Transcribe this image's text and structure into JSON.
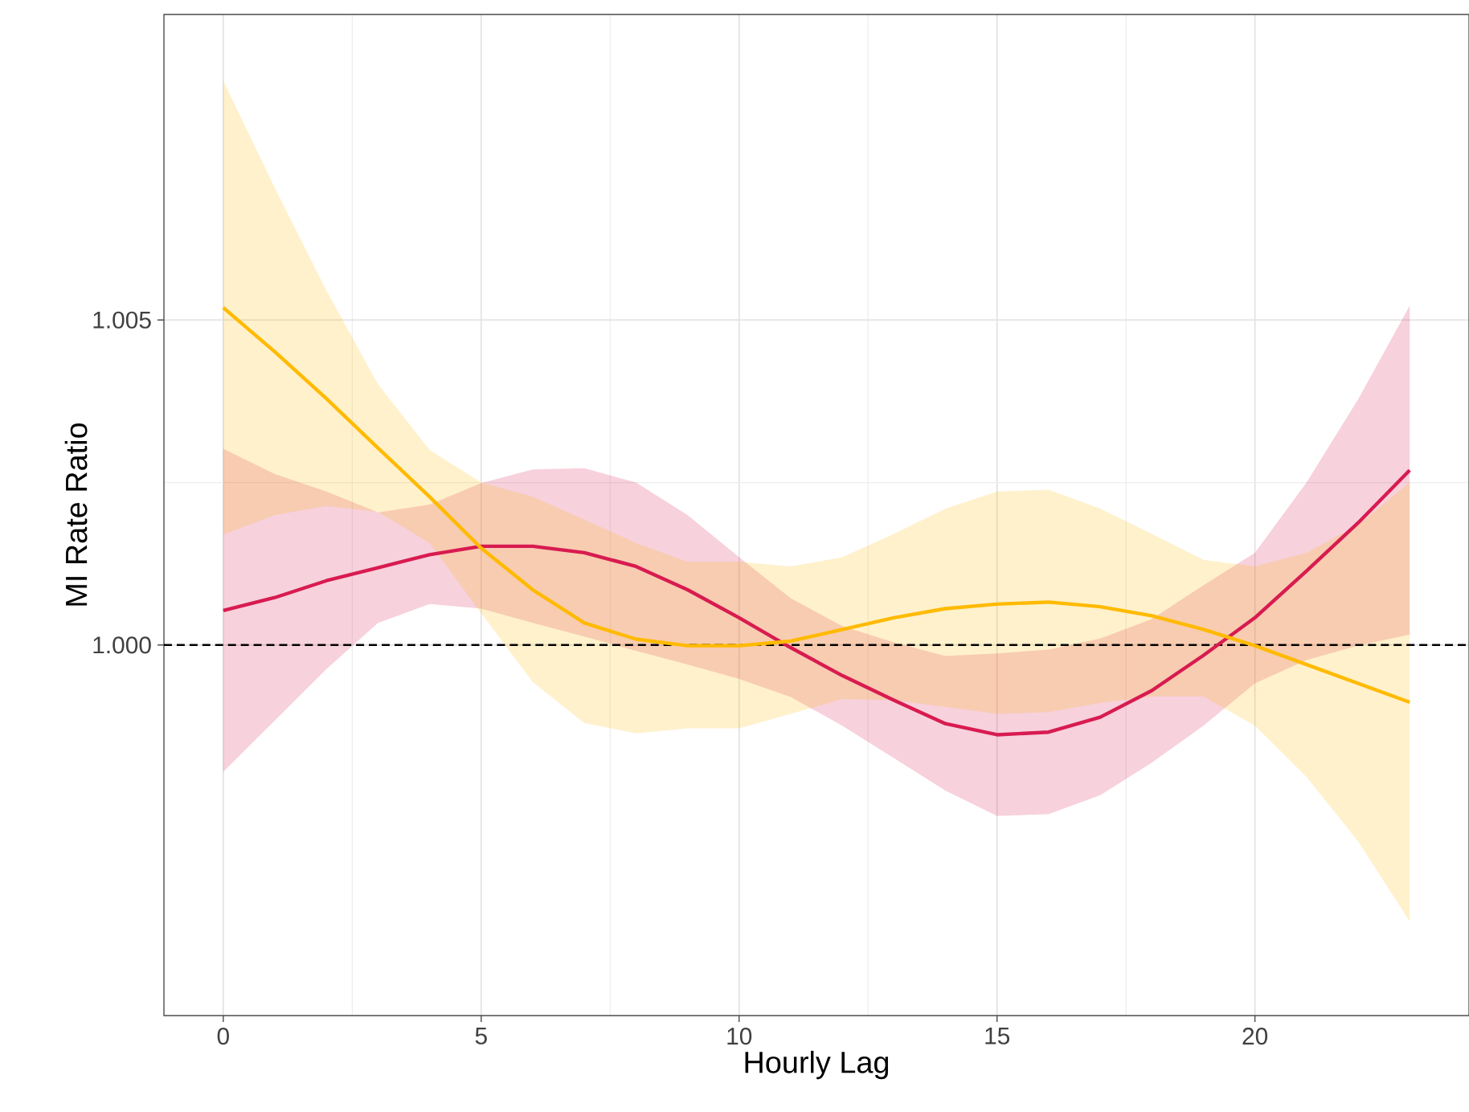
{
  "chart_data": {
    "type": "line",
    "xlabel": "Hourly Lag",
    "ylabel": "MI Rate Ratio",
    "x": [
      0,
      1,
      2,
      3,
      4,
      5,
      6,
      7,
      8,
      9,
      10,
      11,
      12,
      13,
      14,
      15,
      16,
      17,
      18,
      19,
      20,
      21,
      22,
      23
    ],
    "series": [
      {
        "color": "#d81b50",
        "values": [
          1.00053,
          1.00073,
          1.00099,
          1.00119,
          1.00139,
          1.00152,
          1.00152,
          1.00142,
          1.00121,
          1.00085,
          1.00042,
          0.99996,
          0.99953,
          0.99915,
          0.99879,
          0.99862,
          0.99866,
          0.99889,
          0.9993,
          0.99984,
          1.00042,
          1.00114,
          1.00188,
          1.00269
        ],
        "lower": [
          0.99805,
          0.99884,
          0.99963,
          1.00034,
          1.00063,
          1.00056,
          1.00034,
          1.00013,
          0.99991,
          0.9997,
          0.99948,
          0.9992,
          0.99876,
          0.99826,
          0.99776,
          0.99737,
          0.9974,
          0.99769,
          0.99819,
          0.99876,
          0.99941,
          0.99977,
          0.99999,
          1.00016
        ],
        "upper": [
          1.00302,
          1.00263,
          1.00236,
          1.00204,
          1.00216,
          1.00249,
          1.0027,
          1.00272,
          1.0025,
          1.002,
          1.00135,
          1.00072,
          1.00029,
          1.00004,
          0.99983,
          0.99987,
          0.99993,
          1.0001,
          1.0004,
          1.00092,
          1.00142,
          1.0025,
          1.00378,
          1.00522
        ]
      },
      {
        "color": "#ffba00",
        "values": [
          1.00519,
          1.00451,
          1.00379,
          1.00303,
          1.00228,
          1.00149,
          1.00085,
          1.00034,
          1.00009,
          0.99999,
          0.99999,
          1.00006,
          1.00024,
          1.00042,
          1.00056,
          1.00063,
          1.00066,
          1.00059,
          1.00045,
          1.00024,
          0.99999,
          0.9997,
          0.99941,
          0.99912
        ],
        "lower": [
          1.0017,
          1.002,
          1.00214,
          1.00205,
          1.00157,
          1.00049,
          0.99943,
          0.9988,
          0.99864,
          0.99872,
          0.99872,
          0.99894,
          0.99917,
          0.99915,
          0.99905,
          0.99894,
          0.99897,
          0.99911,
          0.99921,
          0.99921,
          0.99876,
          0.99797,
          0.99698,
          0.99575
        ],
        "upper": [
          1.00868,
          1.00703,
          1.00545,
          1.00401,
          1.003,
          1.0025,
          1.00228,
          1.00193,
          1.00157,
          1.00128,
          1.00128,
          1.00121,
          1.00135,
          1.00171,
          1.0021,
          1.00236,
          1.00239,
          1.0021,
          1.00171,
          1.00131,
          1.00121,
          1.00142,
          1.00185,
          1.0025
        ]
      }
    ],
    "xlim": [
      -1.15,
      24.15
    ],
    "ylim": [
      0.9943,
      1.0097
    ],
    "xticks": [
      0,
      5,
      10,
      15,
      20
    ],
    "yticks": [
      {
        "value": 1.0,
        "label": "1.000"
      },
      {
        "value": 1.005,
        "label": "1.005"
      }
    ],
    "grid": true,
    "marker": "none",
    "line_style": "solid",
    "ref_lines": [
      {
        "axis": "y",
        "value": 1.0,
        "color": "#000000",
        "line_style": "dashed"
      }
    ]
  }
}
